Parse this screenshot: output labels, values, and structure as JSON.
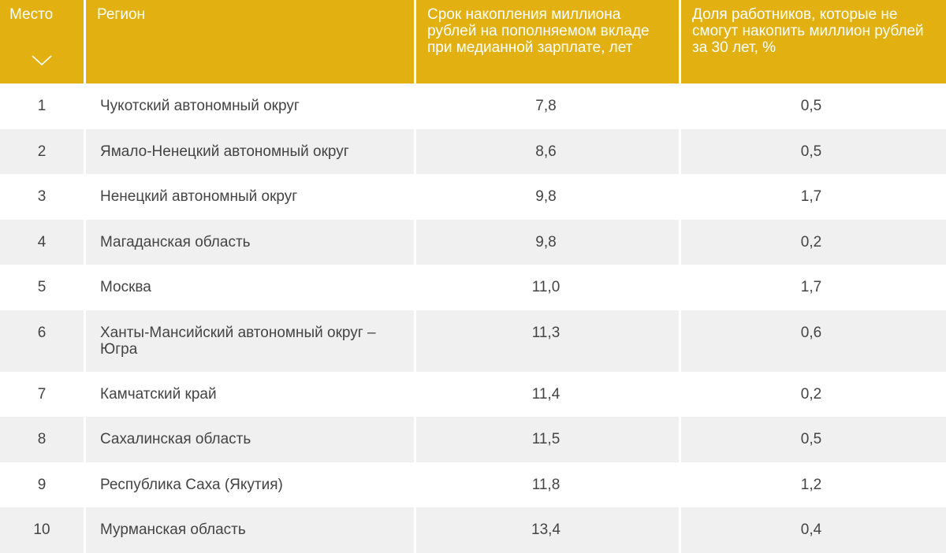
{
  "header": {
    "place": "Место",
    "region": "Регион",
    "years": "Срок накопления миллиона рублей на пополняемом вкладе при медианной зарплате, лет",
    "share": "Доля работников, которые не смогут накопить миллион рублей за 30 лет, %",
    "sort_icon": "chevron-down-icon"
  },
  "rows": [
    {
      "place": "1",
      "region": "Чукотский автономный округ",
      "years": "7,8",
      "share": "0,5"
    },
    {
      "place": "2",
      "region": "Ямало-Ненецкий автономный округ",
      "years": "8,6",
      "share": "0,5"
    },
    {
      "place": "3",
      "region": "Ненецкий автономный округ",
      "years": "9,8",
      "share": "1,7"
    },
    {
      "place": "4",
      "region": "Магаданская область",
      "years": "9,8",
      "share": "0,2"
    },
    {
      "place": "5",
      "region": "Москва",
      "years": "11,0",
      "share": "1,7"
    },
    {
      "place": "6",
      "region": "Ханты-Мансийский автономный округ – Югра",
      "years": "11,3",
      "share": "0,6"
    },
    {
      "place": "7",
      "region": "Камчатский край",
      "years": "11,4",
      "share": "0,2"
    },
    {
      "place": "8",
      "region": "Сахалинская область",
      "years": "11,5",
      "share": "0,5"
    },
    {
      "place": "9",
      "region": "Республика Саха (Якутия)",
      "years": "11,8",
      "share": "1,2"
    },
    {
      "place": "10",
      "region": "Мурманская область",
      "years": "13,4",
      "share": "0,4"
    }
  ],
  "colors": {
    "header_bg": "#e2b111",
    "header_text": "#ffffff",
    "row_alt_bg": "#f0f0f0",
    "body_text": "#444444"
  }
}
